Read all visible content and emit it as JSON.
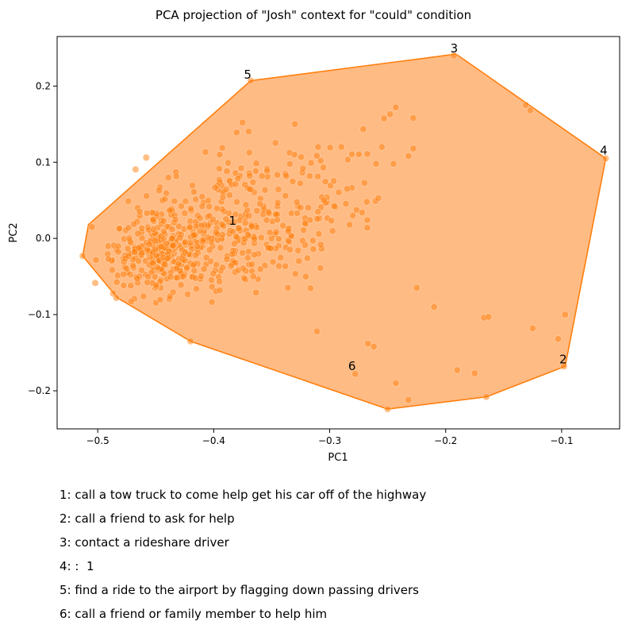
{
  "chart_data": {
    "type": "scatter",
    "title": "PCA projection of \"Josh\" context for \"could\" condition",
    "xlabel": "PC1",
    "ylabel": "PC2",
    "xlim": [
      -0.535,
      -0.05
    ],
    "ylim": [
      -0.25,
      0.265
    ],
    "xticks": [
      -0.5,
      -0.4,
      -0.3,
      -0.2,
      -0.1
    ],
    "xtick_labels": [
      "−0.5",
      "−0.4",
      "−0.3",
      "−0.2",
      "−0.1"
    ],
    "yticks": [
      -0.2,
      -0.1,
      0.0,
      0.1,
      0.2
    ],
    "ytick_labels": [
      "−0.2",
      "−0.1",
      "0.0",
      "0.1",
      "0.2"
    ],
    "grid": false,
    "colors": {
      "points": "#ff7f0e",
      "hull_fill": "#ffbb84",
      "hull_line": "#ff7f0e"
    },
    "hull": [
      [
        -0.513,
        -0.023
      ],
      [
        -0.508,
        0.018
      ],
      [
        -0.368,
        0.207
      ],
      [
        -0.191,
        0.242
      ],
      [
        -0.062,
        0.105
      ],
      [
        -0.097,
        -0.168
      ],
      [
        -0.165,
        -0.208
      ],
      [
        -0.25,
        -0.224
      ],
      [
        -0.42,
        -0.135
      ],
      [
        -0.483,
        -0.078
      ]
    ],
    "cluster": {
      "center": [
        -0.395,
        0.012
      ],
      "count": 650
    },
    "outliers": [
      [
        -0.193,
        0.24
      ],
      [
        -0.062,
        0.105
      ],
      [
        -0.098,
        -0.168
      ],
      [
        -0.165,
        -0.208
      ],
      [
        -0.25,
        -0.224
      ],
      [
        -0.368,
        0.207
      ],
      [
        -0.505,
        0.015
      ],
      [
        -0.513,
        -0.023
      ],
      [
        -0.484,
        -0.078
      ],
      [
        -0.42,
        -0.135
      ],
      [
        -0.278,
        -0.178
      ],
      [
        -0.232,
        -0.212
      ],
      [
        -0.243,
        -0.19
      ],
      [
        -0.267,
        -0.138
      ],
      [
        -0.262,
        -0.142
      ],
      [
        -0.311,
        -0.122
      ],
      [
        -0.175,
        -0.177
      ],
      [
        -0.19,
        -0.173
      ],
      [
        -0.167,
        -0.104
      ],
      [
        -0.163,
        -0.103
      ],
      [
        -0.125,
        -0.118
      ],
      [
        -0.103,
        -0.132
      ],
      [
        -0.097,
        -0.1
      ],
      [
        -0.21,
        -0.09
      ],
      [
        -0.225,
        -0.065
      ],
      [
        -0.131,
        0.175
      ],
      [
        -0.127,
        0.168
      ],
      [
        -0.245,
        0.098
      ],
      [
        -0.228,
        0.118
      ],
      [
        -0.232,
        0.108
      ],
      [
        -0.26,
        0.098
      ],
      [
        -0.255,
        0.12
      ],
      [
        -0.243,
        0.172
      ],
      [
        -0.248,
        0.163
      ],
      [
        -0.228,
        0.158
      ],
      [
        -0.258,
        0.053
      ],
      [
        -0.27,
        0.073
      ],
      [
        -0.285,
        0.065
      ],
      [
        -0.268,
        0.048
      ],
      [
        -0.29,
        0.12
      ],
      [
        -0.28,
        0.03
      ],
      [
        -0.31,
        0.12
      ],
      [
        -0.33,
        0.15
      ],
      [
        -0.305,
        0.05
      ],
      [
        -0.31,
        0.035
      ]
    ],
    "annotations": [
      {
        "label": "1",
        "x": -0.387,
        "y": 0.018
      },
      {
        "label": "2",
        "x": -0.102,
        "y": -0.164
      },
      {
        "label": "3",
        "x": -0.196,
        "y": 0.244
      },
      {
        "label": "4",
        "x": -0.067,
        "y": 0.11
      },
      {
        "label": "5",
        "x": -0.374,
        "y": 0.21
      },
      {
        "label": "6",
        "x": -0.284,
        "y": -0.173
      }
    ]
  },
  "legend": [
    "1: call a tow truck to come help get his car off of the highway",
    "2: call a friend to ask for help",
    "3: contact a rideshare driver",
    "4: :  1",
    "5: find a ride to the airport by flagging down passing drivers",
    "6: call a friend or family member to help him"
  ]
}
